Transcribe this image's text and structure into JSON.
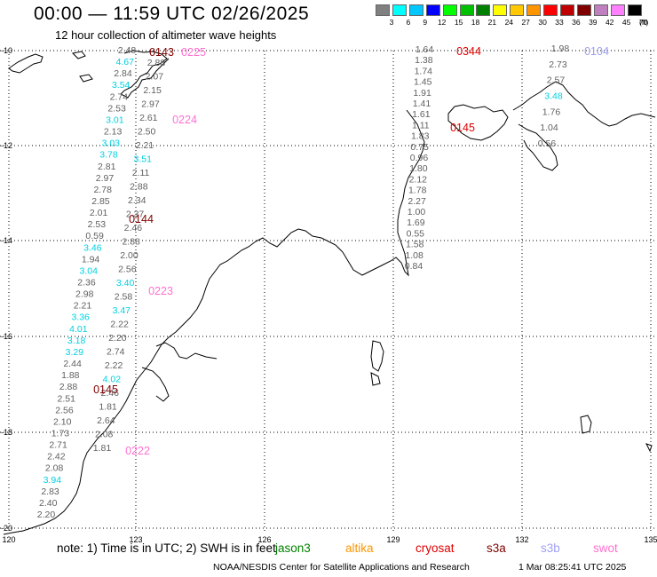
{
  "header": {
    "title": "00:00 — 11:59 UTC 02/26/2025",
    "subtitle": "12 hour collection of altimeter wave heights"
  },
  "legend": {
    "units": "(ft)",
    "bins": [
      {
        "label": "3",
        "color": "#808080"
      },
      {
        "label": "6",
        "color": "#00ffff"
      },
      {
        "label": "9",
        "color": "#00c8ff"
      },
      {
        "label": "12",
        "color": "#0000ff"
      },
      {
        "label": "15",
        "color": "#00ff00"
      },
      {
        "label": "18",
        "color": "#00c000"
      },
      {
        "label": "21",
        "color": "#008000"
      },
      {
        "label": "24",
        "color": "#ffff00"
      },
      {
        "label": "27",
        "color": "#ffc800"
      },
      {
        "label": "30",
        "color": "#ff9600"
      },
      {
        "label": "33",
        "color": "#ff0000"
      },
      {
        "label": "36",
        "color": "#c00000"
      },
      {
        "label": "39",
        "color": "#800000"
      },
      {
        "label": "42",
        "color": "#c080c0"
      },
      {
        "label": "45",
        "color": "#ff80ff"
      },
      {
        "label": "70",
        "color": "#000000"
      }
    ]
  },
  "axes": {
    "lon_labels": [
      "120",
      "123",
      "126",
      "129",
      "132",
      "135"
    ],
    "lat_labels": [
      "-10",
      "-12",
      "-14",
      "-16",
      "-18",
      "-20"
    ]
  },
  "colors": {
    "grey": "#606060",
    "cyan": "#00d0e0",
    "pink": "#ff70d0",
    "maroon": "#800000",
    "red": "#e00000",
    "lavender": "#a0a0f0"
  },
  "tracks": [
    {
      "pass_label": "0225",
      "pass_color": "#ff70d0",
      "observations": [
        {
          "text": "2.48",
          "color": "#606060"
        },
        {
          "text": "4.67",
          "color": "#00d0e0"
        },
        {
          "text": "2.84",
          "color": "#606060"
        },
        {
          "text": "3.54",
          "color": "#00d0e0"
        },
        {
          "text": "2.74",
          "color": "#606060"
        },
        {
          "text": "2.53",
          "color": "#606060"
        },
        {
          "text": "3.01",
          "color": "#00d0e0"
        },
        {
          "text": "2.13",
          "color": "#606060"
        },
        {
          "text": "3.03",
          "color": "#00d0e0"
        },
        {
          "text": "3.78",
          "color": "#00d0e0"
        },
        {
          "text": "2.81",
          "color": "#606060"
        },
        {
          "text": "2.97",
          "color": "#606060"
        },
        {
          "text": "2.78",
          "color": "#606060"
        },
        {
          "text": "2.85",
          "color": "#606060"
        },
        {
          "text": "2.01",
          "color": "#606060"
        },
        {
          "text": "2.53",
          "color": "#606060"
        },
        {
          "text": "0.59",
          "color": "#606060"
        },
        {
          "text": "3.46",
          "color": "#00d0e0"
        },
        {
          "text": "1.94",
          "color": "#606060"
        },
        {
          "text": "3.04",
          "color": "#00d0e0"
        },
        {
          "text": "2.36",
          "color": "#606060"
        },
        {
          "text": "2.98",
          "color": "#606060"
        },
        {
          "text": "2.21",
          "color": "#606060"
        },
        {
          "text": "3.36",
          "color": "#00d0e0"
        },
        {
          "text": "4.01",
          "color": "#00d0e0"
        },
        {
          "text": "3.18",
          "color": "#00d0e0"
        },
        {
          "text": "3.29",
          "color": "#00d0e0"
        },
        {
          "text": "2.44",
          "color": "#606060"
        },
        {
          "text": "1.88",
          "color": "#606060"
        },
        {
          "text": "2.88",
          "color": "#606060"
        },
        {
          "text": "2.51",
          "color": "#606060"
        },
        {
          "text": "2.56",
          "color": "#606060"
        },
        {
          "text": "2.10",
          "color": "#606060"
        },
        {
          "text": "1.73",
          "color": "#606060"
        },
        {
          "text": "2.71",
          "color": "#606060"
        },
        {
          "text": "2.42",
          "color": "#606060"
        },
        {
          "text": "2.08",
          "color": "#606060"
        },
        {
          "text": "3.94",
          "color": "#00d0e0"
        },
        {
          "text": "2.83",
          "color": "#606060"
        },
        {
          "text": "2.40",
          "color": "#606060"
        },
        {
          "text": "2.20",
          "color": "#606060"
        }
      ]
    },
    {
      "pass_label": "0222",
      "pass_color": "#ff70d0",
      "observations": [
        {
          "text": "2.88",
          "color": "#606060"
        },
        {
          "text": "2.07",
          "color": "#606060"
        },
        {
          "text": "2.15",
          "color": "#606060"
        },
        {
          "text": "2.97",
          "color": "#606060"
        },
        {
          "text": "2.61",
          "color": "#606060"
        },
        {
          "text": "2.50",
          "color": "#606060"
        },
        {
          "text": "2.21",
          "color": "#606060"
        },
        {
          "text": "3.51",
          "color": "#00d0e0"
        },
        {
          "text": "2.11",
          "color": "#606060"
        },
        {
          "text": "2.88",
          "color": "#606060"
        },
        {
          "text": "2.34",
          "color": "#606060"
        },
        {
          "text": "2.37",
          "color": "#606060"
        },
        {
          "text": "2.46",
          "color": "#606060"
        },
        {
          "text": "2.88",
          "color": "#606060"
        },
        {
          "text": "2.00",
          "color": "#606060"
        },
        {
          "text": "2.56",
          "color": "#606060"
        },
        {
          "text": "3.40",
          "color": "#00d0e0"
        },
        {
          "text": "2.58",
          "color": "#606060"
        },
        {
          "text": "3.47",
          "color": "#00d0e0"
        },
        {
          "text": "2.22",
          "color": "#606060"
        },
        {
          "text": "2.20",
          "color": "#606060"
        },
        {
          "text": "2.74",
          "color": "#606060"
        },
        {
          "text": "2.22",
          "color": "#606060"
        },
        {
          "text": "4.02",
          "color": "#00d0e0"
        },
        {
          "text": "2.46",
          "color": "#606060"
        },
        {
          "text": "1.81",
          "color": "#606060"
        },
        {
          "text": "2.64",
          "color": "#606060"
        },
        {
          "text": "2.08",
          "color": "#606060"
        },
        {
          "text": "1.81",
          "color": "#606060"
        }
      ]
    },
    {
      "pass_label": "0344",
      "pass_color": "#e00000",
      "observations": [
        {
          "text": "1.64",
          "color": "#606060"
        },
        {
          "text": "1.38",
          "color": "#606060"
        },
        {
          "text": "1.74",
          "color": "#606060"
        },
        {
          "text": "1.45",
          "color": "#606060"
        },
        {
          "text": "1.91",
          "color": "#606060"
        },
        {
          "text": "1.41",
          "color": "#606060"
        },
        {
          "text": "1.61",
          "color": "#606060"
        },
        {
          "text": "1.11",
          "color": "#606060"
        },
        {
          "text": "1.83",
          "color": "#606060"
        },
        {
          "text": "0.75",
          "color": "#606060"
        },
        {
          "text": "0.96",
          "color": "#606060"
        },
        {
          "text": "1.80",
          "color": "#606060"
        },
        {
          "text": "2.12",
          "color": "#606060"
        },
        {
          "text": "1.78",
          "color": "#606060"
        },
        {
          "text": "2.27",
          "color": "#606060"
        },
        {
          "text": "1.00",
          "color": "#606060"
        },
        {
          "text": "1.69",
          "color": "#606060"
        },
        {
          "text": "0.55",
          "color": "#606060"
        },
        {
          "text": "1.58",
          "color": "#606060"
        },
        {
          "text": "1.08",
          "color": "#606060"
        },
        {
          "text": "0.84",
          "color": "#606060"
        }
      ]
    },
    {
      "pass_label": "0104",
      "pass_color": "#a0a0f0",
      "observations": [
        {
          "text": "1.98",
          "color": "#606060"
        },
        {
          "text": "2.73",
          "color": "#606060"
        },
        {
          "text": "2.57",
          "color": "#606060"
        },
        {
          "text": "3.48",
          "color": "#00d0e0"
        },
        {
          "text": "1.76",
          "color": "#606060"
        },
        {
          "text": "1.04",
          "color": "#606060"
        },
        {
          "text": "0.56",
          "color": "#606060"
        }
      ]
    }
  ],
  "pass_labels": {
    "p0143": {
      "text": "0143",
      "color": "#800000"
    },
    "p0225": {
      "text": "0225",
      "color": "#ff70d0"
    },
    "p0224": {
      "text": "0224",
      "color": "#ff70d0"
    },
    "p0144": {
      "text": "0144",
      "color": "#800000"
    },
    "p0223": {
      "text": "0223",
      "color": "#ff70d0"
    },
    "p0145m": {
      "text": "0145",
      "color": "#800000"
    },
    "p0222": {
      "text": "0222",
      "color": "#ff70d0"
    },
    "p0344": {
      "text": "0344",
      "color": "#e00000"
    },
    "p0145r": {
      "text": "0145",
      "color": "#e00000"
    },
    "p0104": {
      "text": "0104",
      "color": "#a0a0f0"
    }
  },
  "footer": {
    "note": "note: 1) Time is in UTC; 2) SWH is in feet",
    "satellites": [
      {
        "name": "jason3",
        "color": "#008000"
      },
      {
        "name": "altika",
        "color": "#ff9600"
      },
      {
        "name": "cryosat",
        "color": "#e00000"
      },
      {
        "name": "s3a",
        "color": "#800000"
      },
      {
        "name": "s3b",
        "color": "#a0a0f0"
      },
      {
        "name": "swot",
        "color": "#ff70d0"
      }
    ],
    "credit": "NOAA/NESDIS Center for Satellite Applications and Research",
    "timestamp": "1 Mar 08:25:41 UTC 2025"
  }
}
